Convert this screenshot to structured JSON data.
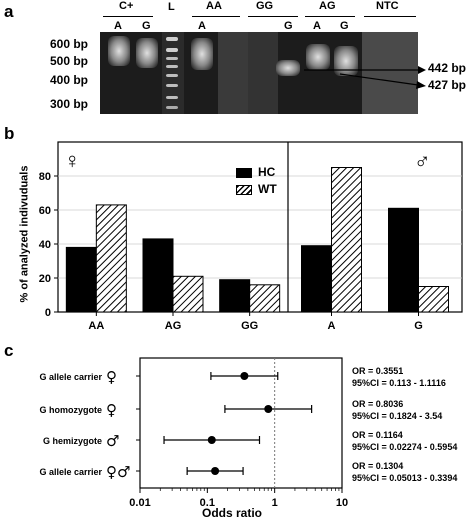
{
  "panel_a": {
    "letter": "a",
    "lanes": [
      {
        "label": "C+",
        "sub": [
          "A",
          "G"
        ]
      },
      {
        "label": "L",
        "sub": []
      },
      {
        "label": "AA",
        "sub": [
          "A"
        ]
      },
      {
        "label": "GG",
        "sub": [
          "G"
        ]
      },
      {
        "label": "AG",
        "sub": [
          "A",
          "G"
        ]
      },
      {
        "label": "NTC",
        "sub": []
      }
    ],
    "ladder_labels": [
      "600 bp",
      "500 bp",
      "400 bp",
      "300 bp"
    ],
    "band_labels": [
      "442 bp",
      "427 bp"
    ]
  },
  "panel_b": {
    "letter": "b",
    "ylabel": "% of analyzed indivuduals",
    "legend": [
      "HC",
      "WT"
    ],
    "female_symbol": "♀",
    "male_symbol": "♂",
    "chart_data": {
      "type": "bar",
      "ylim": [
        0,
        100
      ],
      "yticks": [
        "0",
        "20",
        "40",
        "60",
        "80"
      ],
      "groups": [
        {
          "sex": "female",
          "categories": [
            "AA",
            "AG",
            "GG"
          ],
          "series": [
            {
              "name": "HC",
              "values": [
                38,
                43,
                19
              ]
            },
            {
              "name": "WT",
              "values": [
                63,
                21,
                16
              ]
            }
          ]
        },
        {
          "sex": "male",
          "categories": [
            "A",
            "G"
          ],
          "series": [
            {
              "name": "HC",
              "values": [
                39,
                61
              ]
            },
            {
              "name": "WT",
              "values": [
                85,
                15
              ]
            }
          ]
        }
      ],
      "legend": "top-center",
      "grid": true
    }
  },
  "panel_c": {
    "letter": "c",
    "xlabel": "Odds ratio",
    "xticks": [
      "0.01",
      "0.1",
      "1",
      "10"
    ],
    "chart_data": {
      "type": "scatter",
      "xscale": "log",
      "xlim": [
        0.01,
        10
      ],
      "reference_line": 1,
      "rows": [
        {
          "label": "G allele carrier",
          "symbol": "♀",
          "or": 0.3551,
          "ci": [
            0.113,
            1.1116
          ],
          "or_text": "OR = 0.3551",
          "ci_text": "95%CI = 0.113 - 1.1116"
        },
        {
          "label": "G homozygote",
          "symbol": "♀",
          "or": 0.8036,
          "ci": [
            0.1824,
            3.54
          ],
          "or_text": "OR = 0.8036",
          "ci_text": "95%CI = 0.1824 - 3.54"
        },
        {
          "label": "G hemizygote",
          "symbol": "♂",
          "or": 0.1164,
          "ci": [
            0.02274,
            0.5954
          ],
          "or_text": "OR = 0.1164",
          "ci_text": "95%CI = 0.02274 - 0.5954"
        },
        {
          "label": "G allele carrier",
          "symbol": "♀♂",
          "or": 0.1304,
          "ci": [
            0.05013,
            0.3394
          ],
          "or_text": "OR = 0.1304",
          "ci_text": "95%CI = 0.05013 - 0.3394"
        }
      ]
    }
  }
}
